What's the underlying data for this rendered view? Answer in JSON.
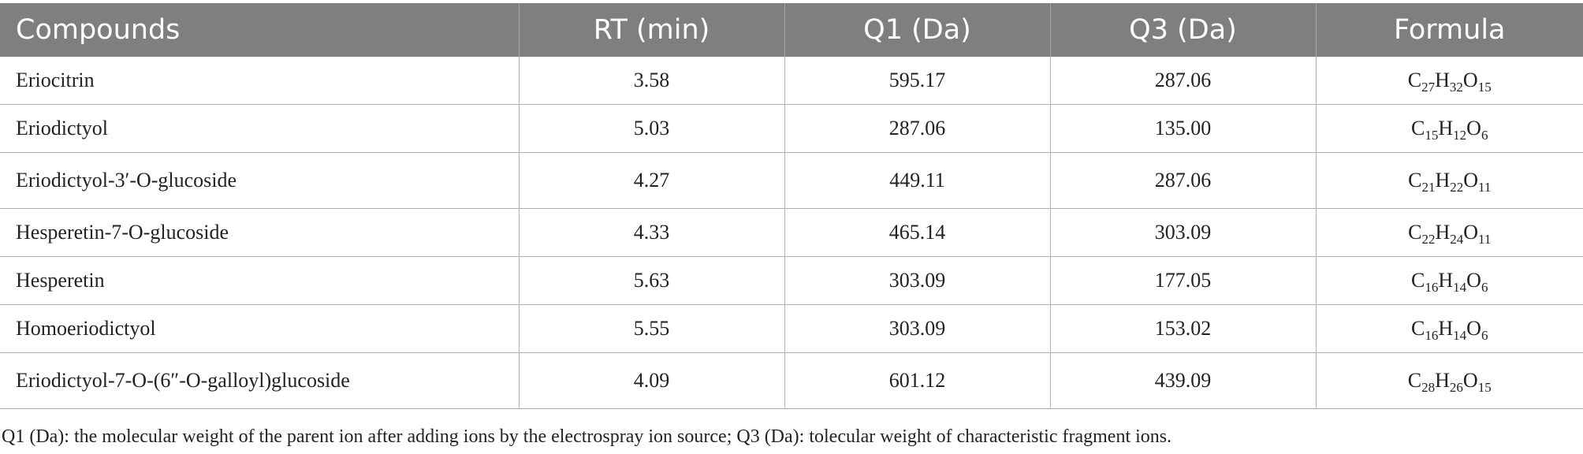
{
  "table": {
    "headers": [
      "Compounds",
      "RT (min)",
      "Q1 (Da)",
      "Q3 (Da)",
      "Formula"
    ],
    "rows": [
      {
        "compound": "Eriocitrin",
        "rt": "3.58",
        "q1": "595.17",
        "q3": "287.06",
        "formula": [
          {
            "e": "C",
            "n": "27"
          },
          {
            "e": "H",
            "n": "32"
          },
          {
            "e": "O",
            "n": "15"
          }
        ]
      },
      {
        "compound": "Eriodictyol",
        "rt": "5.03",
        "q1": "287.06",
        "q3": "135.00",
        "formula": [
          {
            "e": "C",
            "n": "15"
          },
          {
            "e": "H",
            "n": "12"
          },
          {
            "e": "O",
            "n": "6"
          }
        ]
      },
      {
        "compound": "Eriodictyol-3′-O-glucoside",
        "rt": "4.27",
        "q1": "449.11",
        "q3": "287.06",
        "formula": [
          {
            "e": "C",
            "n": "21"
          },
          {
            "e": "H",
            "n": "22"
          },
          {
            "e": "O",
            "n": "11"
          }
        ]
      },
      {
        "compound": "Hesperetin-7-O-glucoside",
        "rt": "4.33",
        "q1": "465.14",
        "q3": "303.09",
        "formula": [
          {
            "e": "C",
            "n": "22"
          },
          {
            "e": "H",
            "n": "24"
          },
          {
            "e": "O",
            "n": "11"
          }
        ]
      },
      {
        "compound": "Hesperetin",
        "rt": "5.63",
        "q1": "303.09",
        "q3": "177.05",
        "formula": [
          {
            "e": "C",
            "n": "16"
          },
          {
            "e": "H",
            "n": "14"
          },
          {
            "e": "O",
            "n": "6"
          }
        ]
      },
      {
        "compound": "Homoeriodictyol",
        "rt": "5.55",
        "q1": "303.09",
        "q3": "153.02",
        "formula": [
          {
            "e": "C",
            "n": "16"
          },
          {
            "e": "H",
            "n": "14"
          },
          {
            "e": "O",
            "n": "6"
          }
        ]
      },
      {
        "compound": "Eriodictyol-7-O-(6″-O-galloyl)glucoside",
        "rt": "4.09",
        "q1": "601.12",
        "q3": "439.09",
        "formula": [
          {
            "e": "C",
            "n": "28"
          },
          {
            "e": "H",
            "n": "26"
          },
          {
            "e": "O",
            "n": "15"
          }
        ]
      }
    ]
  },
  "footnote": "Q1 (Da): the molecular weight of the parent ion after adding ions by the electrospray ion source; Q3 (Da): tolecular weight of characteristic fragment ions."
}
